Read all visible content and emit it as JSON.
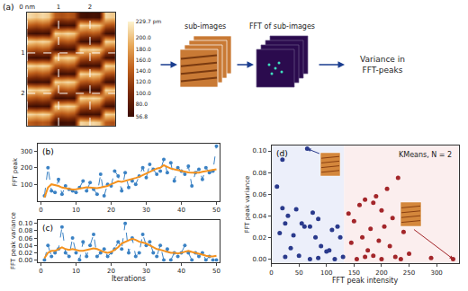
{
  "chart_data": [
    {
      "type": "heatmap",
      "panel": "(a)",
      "x": [
        0.1,
        0.3,
        0.5,
        0.7,
        0.9,
        1.1,
        1.3,
        1.5,
        1.7,
        1.9,
        2.1,
        2.3,
        2.5,
        2.7
      ],
      "y": [
        0.1,
        0.3,
        0.5,
        0.7,
        0.9,
        1.1,
        1.3,
        1.5,
        1.7,
        1.9,
        2.1,
        2.3,
        2.5,
        2.7
      ],
      "z": [
        [
          215,
          205,
          215,
          205,
          140,
          130,
          140,
          130,
          65,
          60,
          65,
          60,
          215,
          205
        ],
        [
          140,
          130,
          140,
          130,
          65,
          60,
          65,
          60,
          215,
          205,
          215,
          205,
          140,
          130
        ],
        [
          65,
          60,
          65,
          60,
          215,
          205,
          215,
          205,
          140,
          130,
          140,
          130,
          65,
          60
        ],
        [
          215,
          205,
          215,
          205,
          140,
          130,
          140,
          130,
          65,
          60,
          65,
          60,
          215,
          205
        ],
        [
          140,
          130,
          140,
          130,
          65,
          60,
          65,
          60,
          215,
          205,
          215,
          205,
          140,
          130
        ],
        [
          65,
          60,
          65,
          60,
          215,
          205,
          215,
          205,
          140,
          130,
          140,
          130,
          65,
          60
        ],
        [
          215,
          205,
          215,
          205,
          140,
          130,
          140,
          130,
          65,
          60,
          65,
          60,
          215,
          205
        ],
        [
          140,
          130,
          140,
          130,
          65,
          60,
          65,
          60,
          215,
          205,
          215,
          205,
          140,
          130
        ],
        [
          65,
          60,
          65,
          60,
          215,
          205,
          215,
          205,
          140,
          130,
          140,
          130,
          65,
          60
        ],
        [
          215,
          205,
          215,
          205,
          140,
          130,
          140,
          130,
          65,
          60,
          65,
          60,
          215,
          205
        ],
        [
          140,
          130,
          140,
          130,
          65,
          60,
          65,
          60,
          215,
          205,
          215,
          205,
          140,
          130
        ],
        [
          65,
          60,
          65,
          60,
          215,
          205,
          215,
          205,
          140,
          130,
          140,
          130,
          65,
          60
        ],
        [
          215,
          205,
          215,
          205,
          140,
          130,
          140,
          130,
          65,
          60,
          65,
          60,
          215,
          205
        ],
        [
          140,
          130,
          140,
          130,
          65,
          60,
          65,
          60,
          215,
          205,
          215,
          205,
          140,
          130
        ]
      ],
      "xlim": [
        0,
        2.8
      ],
      "ylim": [
        2.8,
        0
      ],
      "xticks": [
        {
          "value": 0,
          "label": "0 nm"
        },
        1,
        2
      ],
      "yticks": [
        1,
        2
      ],
      "grid": true,
      "colorbar": {
        "range": [
          56.8,
          229.7
        ],
        "ticks": [
          {
            "value": 229.7,
            "label": "229.7 pm"
          },
          {
            "value": 200,
            "label": "200.0"
          },
          {
            "value": 180,
            "label": "180.0"
          },
          {
            "value": 160,
            "label": "160.0"
          },
          {
            "value": 140,
            "label": "140.0"
          },
          {
            "value": 120,
            "label": "120.0"
          },
          {
            "value": 100,
            "label": "100.0"
          },
          {
            "value": 80,
            "label": "80.0"
          },
          56.8
        ]
      }
    },
    {
      "type": "line",
      "panel": "(b)",
      "x": [
        1,
        2,
        3,
        4,
        5,
        6,
        7,
        8,
        9,
        10,
        11,
        12,
        13,
        14,
        15,
        16,
        17,
        18,
        19,
        20,
        21,
        22,
        23,
        24,
        25,
        26,
        27,
        28,
        29,
        30,
        31,
        32,
        33,
        34,
        35,
        36,
        37,
        38,
        39,
        40,
        41,
        42,
        43,
        44,
        45,
        46,
        47,
        48,
        49,
        50
      ],
      "series": [
        {
          "color": "#3b82c4",
          "marker": "circle",
          "line_style": "dashed",
          "values": [
            30,
            200,
            60,
            50,
            130,
            40,
            90,
            70,
            60,
            50,
            80,
            120,
            60,
            110,
            70,
            40,
            160,
            30,
            100,
            90,
            180,
            150,
            60,
            170,
            80,
            120,
            100,
            150,
            200,
            140,
            220,
            190,
            160,
            180,
            250,
            170,
            230,
            120,
            200,
            180,
            160,
            210,
            90,
            170,
            190,
            130,
            200,
            170,
            180,
            330
          ]
        },
        {
          "color": "#f5921e",
          "line_style": "solid",
          "values": [
            20,
            80,
            100,
            95,
            90,
            80,
            75,
            70,
            68,
            70,
            72,
            78,
            82,
            80,
            78,
            76,
            80,
            85,
            90,
            100,
            110,
            118,
            115,
            120,
            125,
            130,
            138,
            145,
            155,
            165,
            175,
            185,
            195,
            200,
            215,
            205,
            195,
            190,
            185,
            180,
            175,
            172,
            170,
            168,
            170,
            175,
            178,
            180,
            185,
            190
          ]
        }
      ],
      "ylabel": "FFT peak",
      "xlim": [
        -1,
        51
      ],
      "xticks": [
        0,
        10,
        20,
        30,
        40,
        50
      ],
      "ylim": [
        0,
        345
      ],
      "yticks": [
        100,
        200,
        300
      ],
      "grid": false
    },
    {
      "type": "line",
      "panel": "(c)",
      "x": [
        1,
        2,
        3,
        4,
        5,
        6,
        7,
        8,
        9,
        10,
        11,
        12,
        13,
        14,
        15,
        16,
        17,
        18,
        19,
        20,
        21,
        22,
        23,
        24,
        25,
        26,
        27,
        28,
        29,
        30,
        31,
        32,
        33,
        34,
        35,
        36,
        37,
        38,
        39,
        40,
        41,
        42,
        43,
        44,
        45,
        46,
        47,
        48,
        49,
        50
      ],
      "series": [
        {
          "color": "#3b82c4",
          "marker": "circle",
          "line_style": "dashed",
          "values": [
            0.0,
            0.04,
            0.01,
            0.02,
            0.03,
            0.09,
            0.02,
            0.01,
            0.06,
            0.02,
            0.0,
            0.05,
            0.01,
            0.04,
            0.07,
            0.01,
            0.02,
            0.03,
            0.01,
            0.02,
            0.03,
            0.05,
            0.03,
            0.1,
            0.02,
            0.06,
            0.01,
            0.02,
            0.07,
            0.04,
            0.05,
            0.02,
            0.01,
            0.04,
            0.0,
            0.03,
            0.0,
            0.02,
            0.01,
            0.02,
            0.04,
            0.02,
            0.0,
            0.02,
            0.01,
            0.02,
            0.0,
            0.01,
            0.0,
            0.0
          ]
        },
        {
          "color": "#f5921e",
          "line_style": "solid",
          "values": [
            0.005,
            0.02,
            0.025,
            0.025,
            0.03,
            0.035,
            0.03,
            0.028,
            0.03,
            0.028,
            0.025,
            0.025,
            0.027,
            0.03,
            0.032,
            0.03,
            0.025,
            0.022,
            0.02,
            0.022,
            0.028,
            0.035,
            0.045,
            0.05,
            0.055,
            0.058,
            0.055,
            0.05,
            0.048,
            0.045,
            0.04,
            0.035,
            0.03,
            0.028,
            0.025,
            0.022,
            0.02,
            0.02,
            0.018,
            0.02,
            0.022,
            0.025,
            0.022,
            0.02,
            0.018,
            0.015,
            0.012,
            0.01,
            0.01,
            0.012
          ]
        }
      ],
      "xlabel": "Iterations",
      "ylabel": "FFT peak variance",
      "xlim": [
        -1,
        51
      ],
      "xticks": [
        0,
        10,
        20,
        30,
        40,
        50
      ],
      "ylim": [
        -0.005,
        0.11
      ],
      "yticks": [
        {
          "value": 0,
          "label": "0.00"
        },
        {
          "value": 0.02,
          "label": "0.02"
        },
        {
          "value": 0.04,
          "label": "0.04"
        },
        {
          "value": 0.06,
          "label": "0.06"
        },
        {
          "value": 0.08,
          "label": "0.08"
        },
        {
          "value": 0.1,
          "label": "0.10"
        }
      ],
      "grid": false
    },
    {
      "type": "scatter",
      "panel": "(d)",
      "title": "KMeans, N = 2",
      "xlabel": "FFT peak intensity",
      "ylabel": "FFT peak variance",
      "series": [
        {
          "color": "#2a3a8c",
          "marker": "circle",
          "x": [
            65,
            20,
            95,
            10,
            20,
            45,
            30,
            75,
            85,
            55,
            25,
            70,
            60,
            120,
            110,
            15,
            40,
            125,
            80,
            90,
            35,
            100,
            50,
            25,
            115,
            70,
            85,
            105,
            130
          ],
          "y": [
            0.102,
            0.092,
            0.088,
            0.067,
            0.047,
            0.046,
            0.04,
            0.043,
            0.037,
            0.033,
            0.033,
            0.03,
            0.03,
            0.03,
            0.027,
            0.024,
            0.022,
            0.02,
            0.02,
            0.012,
            0.01,
            0.007,
            0.003,
            0.002,
            0.0,
            0.0,
            0.001,
            0.008,
            0.002
          ]
        },
        {
          "color": "#a3262a",
          "marker": "circle",
          "x": [
            230,
            210,
            190,
            170,
            185,
            160,
            200,
            140,
            220,
            150,
            205,
            180,
            240,
            165,
            195,
            145,
            215,
            175,
            250,
            185,
            225,
            155,
            200,
            235,
            330,
            290,
            170
          ],
          "y": [
            0.075,
            0.065,
            0.058,
            0.055,
            0.052,
            0.05,
            0.045,
            0.042,
            0.038,
            0.035,
            0.03,
            0.028,
            0.025,
            0.02,
            0.017,
            0.015,
            0.012,
            0.008,
            0.005,
            0.003,
            0.002,
            0.0,
            0.0,
            0.0,
            0.0,
            0.001,
            0.002
          ]
        }
      ],
      "boundary": 132,
      "xlim": [
        0,
        340
      ],
      "xticks": [
        0,
        50,
        100,
        150,
        200,
        250,
        300
      ],
      "ylim": [
        -0.004,
        0.105
      ],
      "yticks": [
        {
          "value": 0,
          "label": "0.00"
        },
        {
          "value": 0.02,
          "label": "0.02"
        },
        {
          "value": 0.04,
          "label": "0.04"
        },
        {
          "value": 0.06,
          "label": "0.06"
        },
        {
          "value": 0.08,
          "label": "0.08"
        },
        {
          "value": 0.1,
          "label": "0.10"
        }
      ],
      "grid": false
    }
  ],
  "pipeline": {
    "sub_images": "sub-images",
    "fft": "FFT of sub-images",
    "result_lines": [
      "Variance in",
      "FFT-peaks"
    ]
  }
}
